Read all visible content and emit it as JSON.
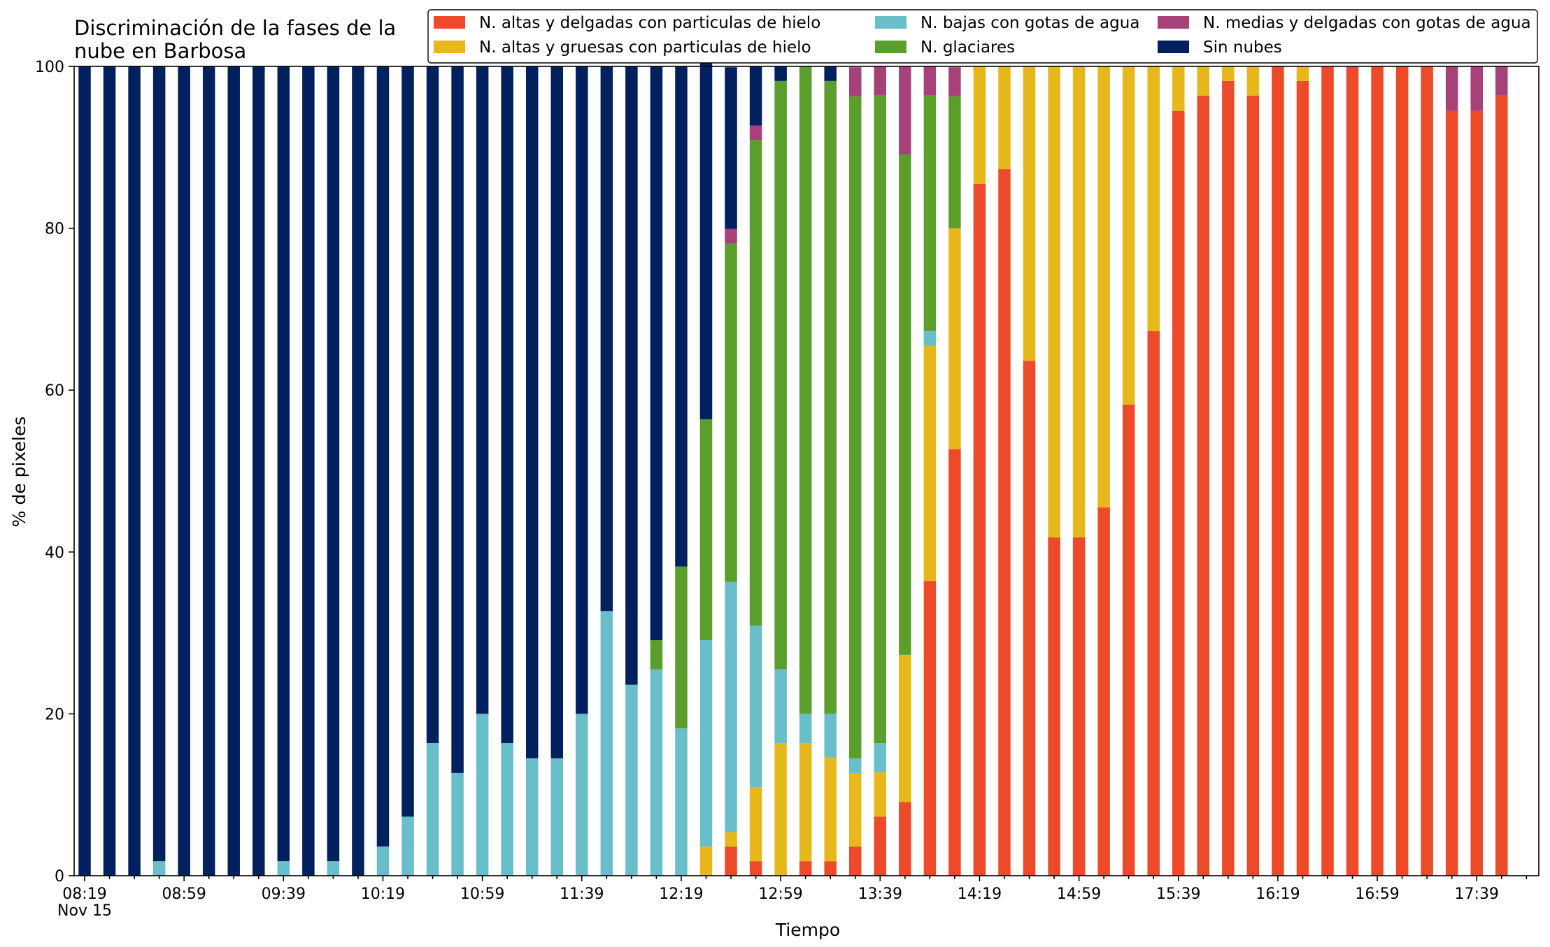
{
  "chart_data": {
    "type": "bar",
    "stacked": true,
    "title_lines": [
      "Discriminación de la fases de la",
      "nube en Barbosa"
    ],
    "xlabel": "Tiempo",
    "ylabel": "% de pixeles",
    "ylim": [
      0,
      100
    ],
    "yticks": [
      "0",
      "20",
      "40",
      "60",
      "80",
      "100"
    ],
    "x_date_label": "Nov 15",
    "grid": false,
    "legend_position": "top-right",
    "categories": [
      "08:19",
      "08:29",
      "08:39",
      "08:49",
      "08:59",
      "09:09",
      "09:19",
      "09:29",
      "09:39",
      "09:49",
      "09:59",
      "10:09",
      "10:19",
      "10:29",
      "10:39",
      "10:49",
      "10:59",
      "11:09",
      "11:19",
      "11:29",
      "11:39",
      "11:49",
      "11:59",
      "12:09",
      "12:19",
      "12:29",
      "12:39",
      "12:49",
      "12:59",
      "13:09",
      "13:19",
      "13:29",
      "13:39",
      "13:49",
      "13:59",
      "14:09",
      "14:19",
      "14:29",
      "14:39",
      "14:49",
      "14:59",
      "15:09",
      "15:19",
      "15:29",
      "15:39",
      "15:49",
      "15:59",
      "16:09",
      "16:19",
      "16:29",
      "16:39",
      "16:49",
      "16:59",
      "17:09",
      "17:19",
      "17:29",
      "17:39",
      "17:49"
    ],
    "tick_labels": [
      "08:19",
      "08:59",
      "09:39",
      "10:19",
      "10:59",
      "11:39",
      "12:19",
      "12:59",
      "13:39",
      "14:19",
      "14:59",
      "15:39",
      "16:19",
      "16:59",
      "17:39"
    ],
    "series": [
      {
        "name": "N. altas y delgadas con particulas de hielo",
        "color": "#ed4a2a",
        "values": [
          0,
          0,
          0,
          0,
          0,
          0,
          0,
          0,
          0,
          0,
          0,
          0,
          0,
          0,
          0,
          0,
          0,
          0,
          0,
          0,
          0,
          0,
          0,
          0,
          0,
          0,
          3.6,
          1.8,
          0,
          1.8,
          1.8,
          3.6,
          7.3,
          9.1,
          36.4,
          52.7,
          85.5,
          87.3,
          63.6,
          41.8,
          41.8,
          45.5,
          58.2,
          67.3,
          94.5,
          96.4,
          98.2,
          96.4,
          100,
          98.2,
          100,
          100,
          100,
          100,
          100,
          94.5,
          94.5,
          96.4
        ]
      },
      {
        "name": "N. altas y gruesas con particulas de hielo",
        "color": "#e6b81c",
        "values": [
          0,
          0,
          0,
          0,
          0,
          0,
          0,
          0,
          0,
          0,
          0,
          0,
          0,
          0,
          0,
          0,
          0,
          0,
          0,
          0,
          0,
          0,
          0,
          0,
          0,
          3.6,
          1.8,
          9.1,
          16.4,
          14.6,
          12.8,
          9.1,
          5.5,
          18.2,
          29.1,
          27.3,
          14.5,
          12.7,
          36.4,
          58.2,
          58.2,
          54.5,
          41.8,
          32.7,
          5.5,
          3.6,
          1.8,
          3.6,
          0,
          1.8,
          0,
          0,
          0,
          0,
          0,
          0,
          0,
          0
        ]
      },
      {
        "name": "N. bajas con gotas de agua",
        "color": "#68bfca",
        "values": [
          0,
          0,
          0,
          1.8,
          0,
          0,
          0,
          0,
          1.8,
          0,
          1.8,
          0,
          3.6,
          7.3,
          16.4,
          12.7,
          20,
          16.4,
          14.5,
          14.5,
          20,
          32.7,
          23.6,
          25.5,
          18.2,
          25.5,
          30.9,
          20,
          9.1,
          3.6,
          5.4,
          1.8,
          3.6,
          0,
          1.8,
          0,
          0,
          0,
          0,
          0,
          0,
          0,
          0,
          0,
          0,
          0,
          0,
          0,
          0,
          0,
          0,
          0,
          0,
          0,
          0,
          0,
          0,
          0
        ]
      },
      {
        "name": "N. glaciares",
        "color": "#5c9e2c",
        "values": [
          0,
          0,
          0,
          0,
          0,
          0,
          0,
          0,
          0,
          0,
          0,
          0,
          0,
          0,
          0,
          0,
          0,
          0,
          0,
          0,
          0,
          0,
          0,
          3.6,
          20,
          27.3,
          41.8,
          60,
          72.7,
          80,
          78.2,
          81.8,
          80,
          61.8,
          29.1,
          16.3,
          0,
          0,
          0,
          0,
          0,
          0,
          0,
          0,
          0,
          0,
          0,
          0,
          0,
          0,
          0,
          0,
          0,
          0,
          0,
          0,
          0,
          0
        ]
      },
      {
        "name": "N. medias y delgadas con gotas de agua",
        "color": "#a64277",
        "values": [
          0,
          0,
          0,
          0,
          0,
          0,
          0,
          0,
          0,
          0,
          0,
          0,
          0,
          0,
          0,
          0,
          0,
          0,
          0,
          0,
          0,
          0,
          0,
          0,
          0,
          0,
          1.8,
          1.8,
          0,
          0,
          0,
          3.6,
          3.6,
          10.9,
          3.6,
          3.6,
          0,
          0,
          0,
          0,
          0,
          0,
          0,
          0,
          0,
          0,
          0,
          0,
          0,
          0,
          0,
          0,
          0,
          0,
          0,
          5.5,
          5.5,
          3.6
        ]
      },
      {
        "name": "Sin nubes",
        "color": "#03205e",
        "values": [
          100,
          100,
          100,
          98.2,
          100,
          100,
          100,
          100,
          98.2,
          100,
          98.2,
          100,
          96.4,
          92.7,
          83.6,
          87.3,
          80,
          83.6,
          85.5,
          85.5,
          80,
          67.3,
          76.4,
          70.9,
          61.8,
          47.3,
          20,
          7.3,
          1.8,
          0,
          1.8,
          0,
          0,
          0,
          0,
          0,
          0,
          0,
          0,
          0,
          0,
          0,
          0,
          0,
          0,
          0,
          0,
          0,
          0,
          0,
          0,
          0,
          0,
          0,
          0,
          0,
          0,
          0
        ]
      }
    ]
  }
}
